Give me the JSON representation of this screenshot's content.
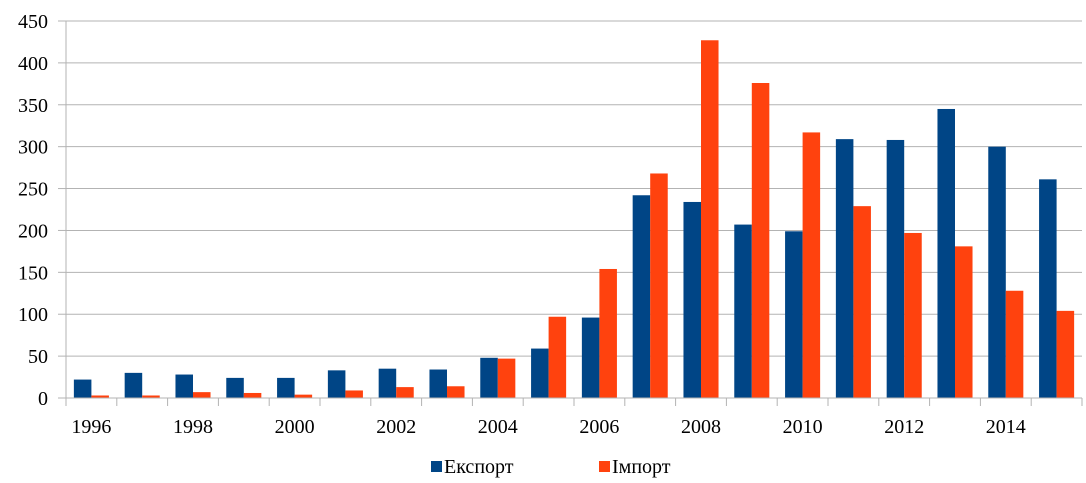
{
  "chart_data": {
    "type": "bar",
    "categories": [
      "1996",
      "1997",
      "1998",
      "1999",
      "2000",
      "2001",
      "2002",
      "2003",
      "2004",
      "2005",
      "2006",
      "2007",
      "2008",
      "2009",
      "2010",
      "2011",
      "2012",
      "2013",
      "2014",
      "2015"
    ],
    "x_tick_labels": [
      "1996",
      "1998",
      "2000",
      "2002",
      "2004",
      "2006",
      "2008",
      "2010",
      "2012",
      "2014"
    ],
    "series": [
      {
        "name": "Експорт",
        "color": "#004586",
        "values": [
          22,
          30,
          28,
          24,
          24,
          33,
          35,
          34,
          48,
          59,
          96,
          242,
          234,
          207,
          199,
          309,
          308,
          345,
          300,
          261
        ]
      },
      {
        "name": "Імпорт",
        "color": "#ff420e",
        "values": [
          3,
          3,
          7,
          6,
          4,
          9,
          13,
          14,
          47,
          97,
          154,
          268,
          427,
          376,
          317,
          229,
          197,
          181,
          128,
          104
        ]
      }
    ],
    "ylim": [
      0,
      450
    ],
    "y_ticks": [
      0,
      50,
      100,
      150,
      200,
      250,
      300,
      350,
      400,
      450
    ],
    "grid": true,
    "legend": "bottom",
    "title": "",
    "xlabel": "",
    "ylabel": ""
  }
}
